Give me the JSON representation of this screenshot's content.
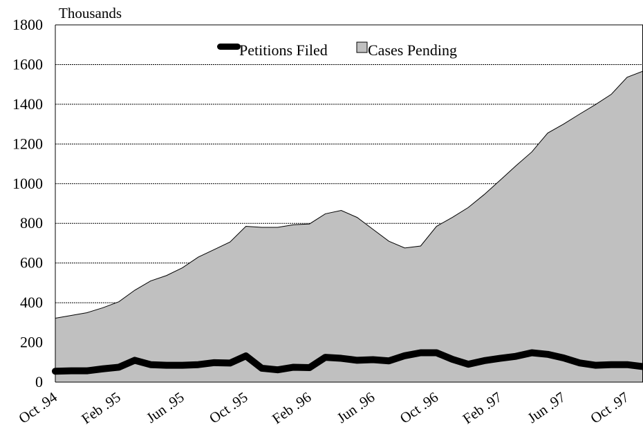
{
  "chart_data": {
    "type": "area",
    "unit_label": "Thousands",
    "ylim": [
      0,
      1800
    ],
    "yticks": [
      0,
      200,
      400,
      600,
      800,
      1000,
      1200,
      1400,
      1600,
      1800
    ],
    "xtick_labels": [
      "Oct .94",
      "Feb .95",
      "Jun .95",
      "Oct .95",
      "Feb .96",
      "Jun .96",
      "Oct .96",
      "Feb .97",
      "Jun .97",
      "Oct .97"
    ],
    "x": [
      "Oct 94",
      "Nov 94",
      "Dec 94",
      "Jan 95",
      "Feb 95",
      "Mar 95",
      "Apr 95",
      "May 95",
      "Jun 95",
      "Jul 95",
      "Aug 95",
      "Sep 95",
      "Oct 95",
      "Nov 95",
      "Dec 95",
      "Jan 96",
      "Feb 96",
      "Mar 96",
      "Apr 96",
      "May 96",
      "Jun 96",
      "Jul 96",
      "Aug 96",
      "Sep 96",
      "Oct 96",
      "Nov 96",
      "Dec 96",
      "Jan 97",
      "Feb 97",
      "Mar 97",
      "Apr 97",
      "May 97",
      "Jun 97",
      "Jul 97",
      "Aug 97",
      "Sep 97",
      "Oct 97",
      "Nov 97"
    ],
    "grid": "horizontal",
    "legend_position": "top-center",
    "series": [
      {
        "name": "Cases Pending",
        "kind": "area",
        "color": "#c0c0c0",
        "values": [
          322,
          336,
          350,
          375,
          405,
          463,
          510,
          537,
          576,
          630,
          668,
          706,
          785,
          780,
          780,
          793,
          797,
          848,
          865,
          830,
          770,
          710,
          676,
          686,
          785,
          830,
          880,
          945,
          1017,
          1090,
          1160,
          1255,
          1300,
          1350,
          1398,
          1450,
          1536,
          1567
        ]
      },
      {
        "name": "Petitions Filed",
        "kind": "line",
        "color": "#000000",
        "values": [
          55,
          57,
          57,
          67,
          75,
          110,
          88,
          85,
          85,
          88,
          98,
          96,
          132,
          70,
          62,
          75,
          73,
          125,
          120,
          110,
          113,
          107,
          133,
          148,
          148,
          115,
          90,
          108,
          120,
          130,
          148,
          140,
          122,
          97,
          85,
          88,
          88,
          78
        ]
      }
    ]
  }
}
